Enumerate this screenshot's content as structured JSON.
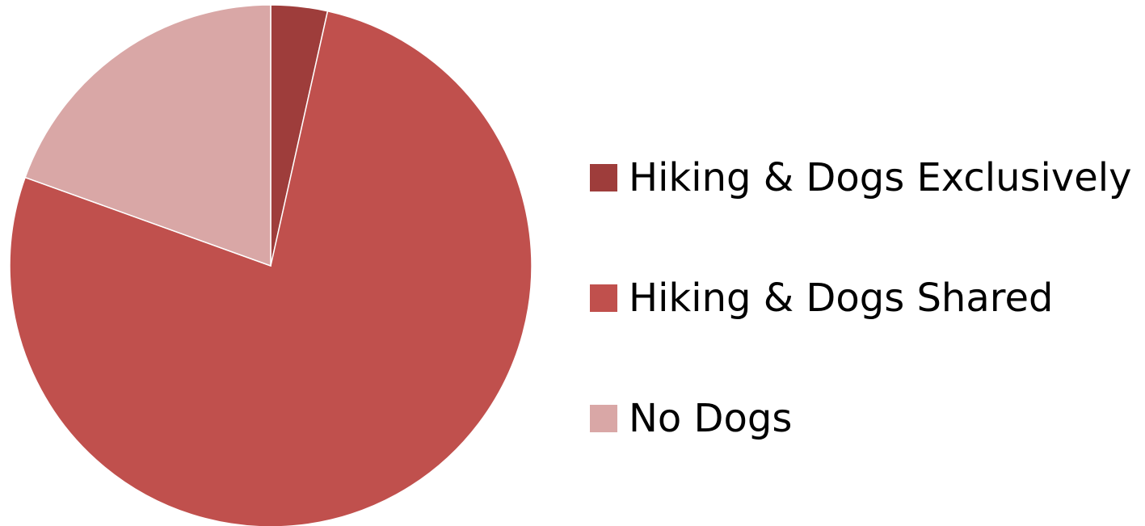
{
  "chart_data": {
    "type": "pie",
    "title": "",
    "categories": [
      "Hiking & Dogs Exclusively",
      "Hiking & Dogs Shared",
      "No Dogs"
    ],
    "values": [
      3.5,
      77,
      19.5
    ],
    "colors": [
      "#9e3d3b",
      "#c0504d",
      "#d9a7a6"
    ],
    "start_angle_deg": 0,
    "direction": "clockwise",
    "legend_position": "right"
  }
}
